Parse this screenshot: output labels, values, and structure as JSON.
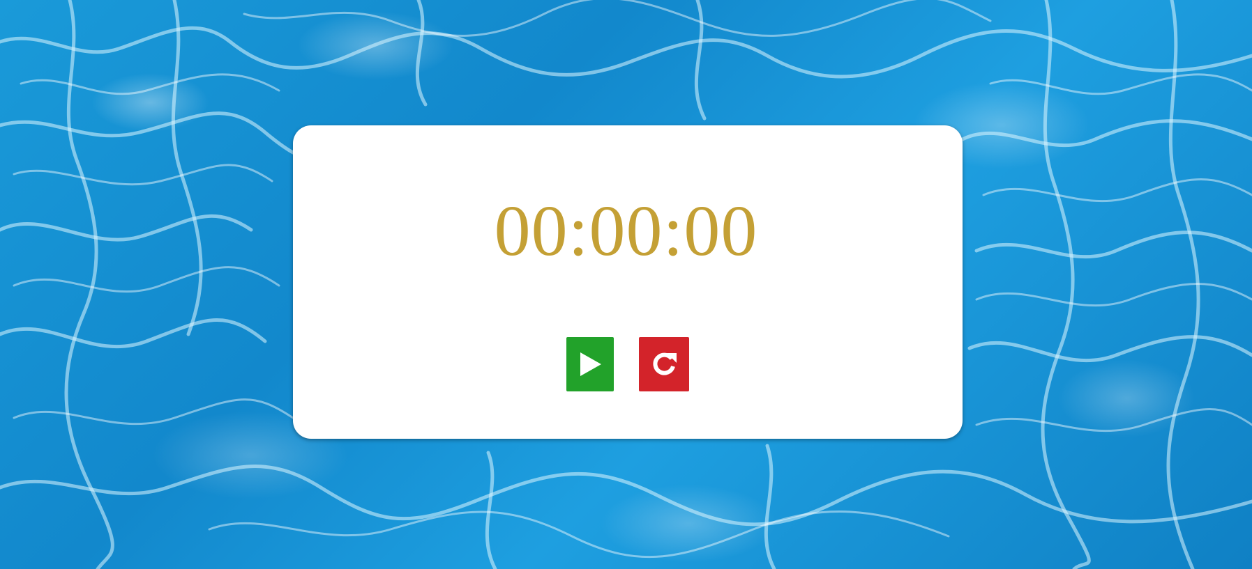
{
  "timer": {
    "display": "00:00:00"
  },
  "controls": {
    "play": {
      "icon": "play-icon",
      "color": "#22a22a"
    },
    "reset": {
      "icon": "reset-icon",
      "color": "#d3232a"
    }
  },
  "theme": {
    "background": "water-ripple",
    "card_color": "#ffffff",
    "time_color": "#c4a035"
  }
}
